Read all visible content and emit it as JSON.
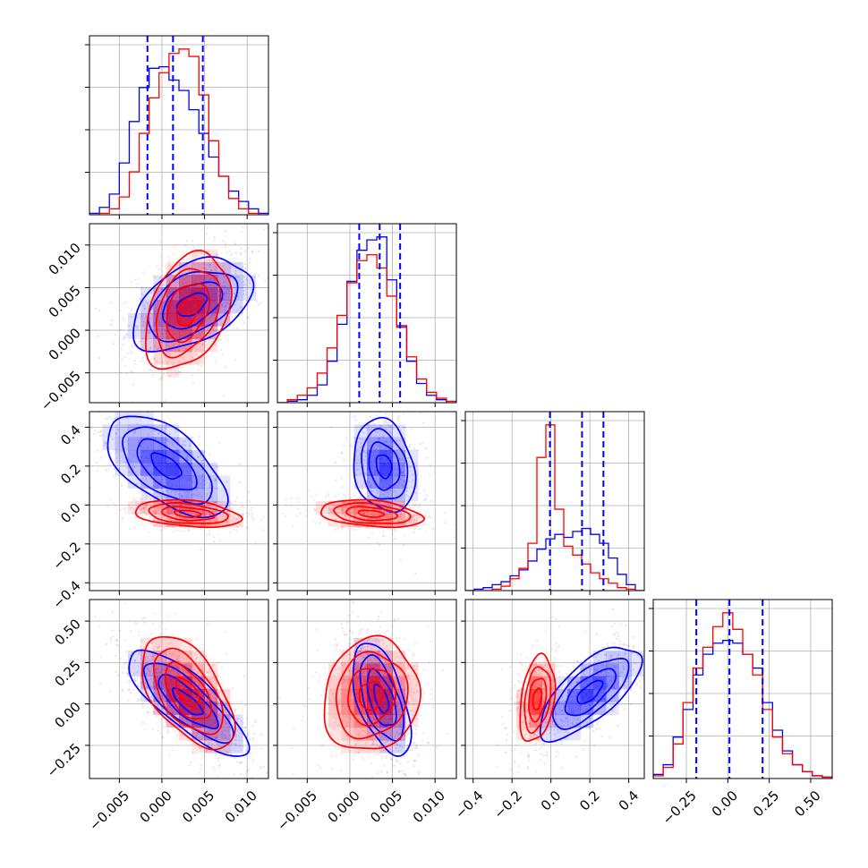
{
  "chart_data": {
    "type": "corner",
    "grid": true,
    "colors": {
      "series_a": "#0000ff",
      "series_b": "#ff0000"
    },
    "parameters": [
      {
        "range": [
          -0.0085,
          0.0125
        ],
        "ticks": [
          -0.005,
          0.0,
          0.005,
          0.01
        ],
        "tick_labels": [
          "−0.005",
          "0.000",
          "0.005",
          "0.010"
        ]
      },
      {
        "range": [
          -0.0085,
          0.0125
        ],
        "ticks": [
          -0.005,
          0.0,
          0.005,
          0.01
        ],
        "tick_labels": [
          "−0.005",
          "0.000",
          "0.005",
          "0.010"
        ]
      },
      {
        "range": [
          -0.44,
          0.48
        ],
        "ticks": [
          -0.4,
          -0.2,
          0.0,
          0.2,
          0.4
        ],
        "tick_labels": [
          "−0.4",
          "−0.2",
          "0.0",
          "0.2",
          "0.4"
        ]
      },
      {
        "range": [
          -0.45,
          0.63
        ],
        "ticks": [
          -0.25,
          0.0,
          0.25,
          0.5
        ],
        "tick_labels": [
          "−0.25",
          "0.00",
          "0.25",
          "0.50"
        ]
      }
    ],
    "histograms": [
      {
        "param": 0,
        "blue": [
          0.01,
          0.05,
          0.14,
          0.35,
          0.63,
          0.86,
          0.99,
          1.0,
          0.91,
          0.84,
          0.71,
          0.55,
          0.39,
          0.26,
          0.16,
          0.09,
          0.04,
          0.01
        ],
        "red": [
          0.0,
          0.01,
          0.04,
          0.12,
          0.29,
          0.55,
          0.79,
          0.96,
          1.09,
          1.12,
          1.07,
          0.81,
          0.5,
          0.26,
          0.11,
          0.04,
          0.01,
          0.0
        ],
        "quantiles": [
          -0.0017,
          0.0013,
          0.0048
        ]
      },
      {
        "param": 1,
        "blue": [
          0.0,
          0.01,
          0.02,
          0.05,
          0.12,
          0.28,
          0.53,
          0.82,
          1.03,
          1.1,
          1.12,
          0.83,
          0.52,
          0.28,
          0.13,
          0.05,
          0.02,
          0.0
        ],
        "red": [
          0.0,
          0.02,
          0.05,
          0.1,
          0.2,
          0.37,
          0.59,
          0.81,
          0.96,
          1.0,
          0.91,
          0.72,
          0.51,
          0.31,
          0.16,
          0.07,
          0.03,
          0.01
        ],
        "quantiles": [
          0.0011,
          0.0035,
          0.0059
        ]
      },
      {
        "param": 2,
        "blue": [
          0.0,
          0.01,
          0.02,
          0.04,
          0.06,
          0.1,
          0.14,
          0.2,
          0.28,
          0.35,
          0.38,
          0.36,
          0.4,
          0.42,
          0.38,
          0.32,
          0.22,
          0.11,
          0.04,
          0.0
        ],
        "red": [
          0.0,
          0.0,
          0.0,
          0.01,
          0.03,
          0.08,
          0.15,
          0.32,
          0.9,
          1.12,
          0.55,
          0.3,
          0.24,
          0.18,
          0.12,
          0.08,
          0.05,
          0.02,
          0.01,
          0.0
        ],
        "quantiles": [
          -0.005,
          0.16,
          0.27
        ]
      },
      {
        "param": 3,
        "blue": [
          0.03,
          0.1,
          0.3,
          0.5,
          0.75,
          0.9,
          0.98,
          1.0,
          0.98,
          0.9,
          0.8,
          0.55,
          0.35,
          0.2,
          0.1,
          0.05,
          0.02,
          0.01
        ],
        "red": [
          0.02,
          0.08,
          0.25,
          0.55,
          0.8,
          0.95,
          1.1,
          1.2,
          1.08,
          0.9,
          0.75,
          0.5,
          0.3,
          0.18,
          0.1,
          0.05,
          0.02,
          0.01
        ],
        "quantiles": [
          -0.19,
          0.01,
          0.21
        ]
      }
    ],
    "pairs": [
      {
        "x_param": 0,
        "y_param": 1,
        "blue": {
          "center": [
            0.0035,
            0.003
          ],
          "sd": [
            0.0035,
            0.0027
          ],
          "rho": 0.45
        },
        "red": {
          "center": [
            0.003,
            0.0022
          ],
          "sd": [
            0.0025,
            0.0034
          ],
          "rho": 0.35
        }
      },
      {
        "x_param": 0,
        "y_param": 2,
        "blue": {
          "center": [
            0.0005,
            0.2
          ],
          "sd": [
            0.0035,
            0.13
          ],
          "rho": -0.6
        },
        "red": {
          "center": [
            0.003,
            -0.045
          ],
          "sd": [
            0.0031,
            0.035
          ],
          "rho": -0.3
        }
      },
      {
        "x_param": 0,
        "y_param": 3,
        "blue": {
          "center": [
            0.003,
            0.01
          ],
          "sd": [
            0.0035,
            0.16
          ],
          "rho": -0.8
        },
        "red": {
          "center": [
            0.003,
            0.07
          ],
          "sd": [
            0.0027,
            0.17
          ],
          "rho": -0.55
        }
      },
      {
        "x_param": 1,
        "y_param": 2,
        "blue": {
          "center": [
            0.004,
            0.2
          ],
          "sd": [
            0.0018,
            0.12
          ],
          "rho": -0.2
        },
        "red": {
          "center": [
            0.0025,
            -0.045
          ],
          "sd": [
            0.003,
            0.035
          ],
          "rho": -0.3
        }
      },
      {
        "x_param": 1,
        "y_param": 3,
        "blue": {
          "center": [
            0.0037,
            0.03
          ],
          "sd": [
            0.0017,
            0.17
          ],
          "rho": -0.55
        },
        "red": {
          "center": [
            0.0025,
            0.05
          ],
          "sd": [
            0.0028,
            0.17
          ],
          "rho": 0.1
        }
      },
      {
        "x_param": 2,
        "y_param": 3,
        "blue": {
          "center": [
            0.2,
            0.07
          ],
          "sd": [
            0.13,
            0.14
          ],
          "rho": 0.7
        },
        "red": {
          "center": [
            -0.07,
            0.03
          ],
          "sd": [
            0.045,
            0.13
          ],
          "rho": 0.3
        }
      }
    ],
    "contour_levels": [
      0.5,
      1.0,
      1.5,
      2.0
    ]
  }
}
